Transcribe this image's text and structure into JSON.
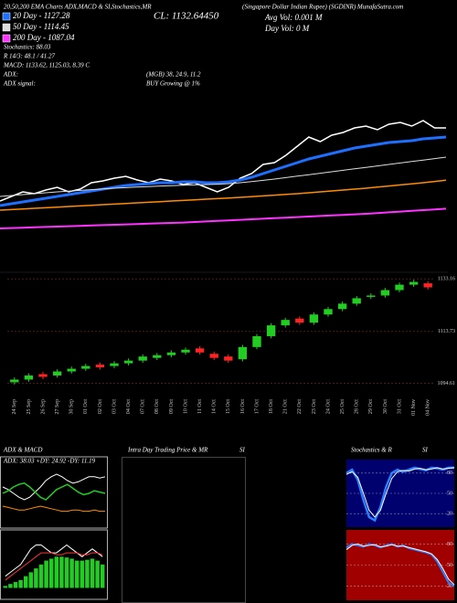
{
  "header": {
    "left": "20,50,200 EMA Charts ADX,MACD & SI,Stochastics,MR",
    "right": "(Singapore Dollar Indian Rupee) (SGDINR) MunafaSutra.com",
    "close": "CL: 1132.64450",
    "avg_vol": "Avg Vol: 0.001  M",
    "day_vol": "Day Vol: 0  M",
    "stoch": "Stochastics: 88.03",
    "r": "R 14/3: 48.1 / 41.27",
    "macd": "MACD: 1133.62, 1125.03, 8.39 C",
    "adx": "ADX:",
    "adx_signal": "ADX  signal:",
    "mgb": "(MGB) 38, 24.9, 11.2",
    "buy": "BUY Growing @ 1%"
  },
  "panels": {
    "adx_title": "ADX  & MACD",
    "adx_values": "ADX: 38.03  +DY: 24.92  -DY: 11.19",
    "intraday_title": "Intra Day Trading Price  & MR",
    "intraday_si": "SI",
    "stoch_title": "Stochastics & R",
    "stoch_si": "SI"
  },
  "chart_data": [
    {
      "type": "line",
      "legend": "top-left",
      "ylim": [
        1077,
        1207
      ],
      "series": [
        {
          "color": "#ffffff",
          "line_width": 1.5,
          "values": [
            1097,
            1099.5,
            1102,
            1101,
            1103,
            1104.5,
            1102,
            1103.5,
            1107,
            1108,
            1109.5,
            1110.5,
            1108.5,
            1107,
            1109,
            1108,
            1106,
            1107,
            1104.5,
            1102,
            1104.5,
            1109.5,
            1112,
            1117,
            1118,
            1122,
            1127,
            1132,
            1129.5,
            1133,
            1134.5,
            1137,
            1138,
            1136,
            1139,
            1140,
            1138,
            1141,
            1137,
            1137
          ]
        },
        {
          "name": "20 Day - 1127.28",
          "color": "#1f6fff",
          "line_width": 3,
          "values": [
            1094.5,
            1095.5,
            1096.5,
            1097.5,
            1098.5,
            1099.5,
            1100.5,
            1101.5,
            1102.5,
            1103.5,
            1104.5,
            1105.5,
            1106,
            1106.5,
            1107,
            1107,
            1107.5,
            1107.5,
            1107,
            1107,
            1107.5,
            1108.5,
            1110,
            1112,
            1114,
            1116,
            1118,
            1120,
            1121.5,
            1123,
            1124.5,
            1126,
            1127,
            1128,
            1129,
            1129.5,
            1130,
            1131,
            1131.5,
            1132
          ]
        },
        {
          "name": "50 Day - 1114.45",
          "color": "#dddddd",
          "line_width": 1,
          "values": [
            1099.5,
            1100,
            1100.5,
            1101,
            1101.5,
            1102,
            1102.4,
            1102.8,
            1103.2,
            1103.6,
            1104,
            1104.3,
            1104.6,
            1104.9,
            1105.2,
            1105.4,
            1105.6,
            1105.8,
            1106,
            1106.2,
            1106.5,
            1107,
            1107.6,
            1108.3,
            1109,
            1109.8,
            1110.6,
            1111.4,
            1112.2,
            1113,
            1113.8,
            1114.6,
            1115.4,
            1116.2,
            1117,
            1117.8,
            1118.6,
            1119.4,
            1120.2,
            1121
          ]
        },
        {
          "color": "#ff8c00",
          "line_width": 1.5,
          "values": [
            1092,
            1092.3,
            1092.6,
            1093,
            1093.3,
            1093.6,
            1094,
            1094.3,
            1094.6,
            1095,
            1095.3,
            1095.6,
            1096,
            1096.3,
            1096.6,
            1097,
            1097.3,
            1097.6,
            1098,
            1098.3,
            1098.6,
            1099,
            1099.4,
            1099.8,
            1100.2,
            1100.6,
            1101,
            1101.5,
            1102,
            1102.5,
            1103,
            1103.5,
            1104,
            1104.6,
            1105.2,
            1105.8,
            1106.4,
            1107,
            1107.7,
            1108.4
          ]
        },
        {
          "name": "200 Day - 1087.04",
          "color": "#ff33ff",
          "line_width": 2,
          "values": [
            1082,
            1082.2,
            1082.4,
            1082.6,
            1082.8,
            1083,
            1083.2,
            1083.4,
            1083.6,
            1083.8,
            1084,
            1084.2,
            1084.4,
            1084.6,
            1084.8,
            1085,
            1085.2,
            1085.5,
            1085.8,
            1086.1,
            1086.4,
            1086.7,
            1087,
            1087.3,
            1087.6,
            1087.9,
            1088.2,
            1088.5,
            1088.8,
            1089.1,
            1089.4,
            1089.7,
            1090,
            1090.4,
            1090.8,
            1091.2,
            1091.6,
            1092,
            1092.4,
            1092.8
          ]
        }
      ]
    },
    {
      "type": "candlestick",
      "ylim": [
        1091.1,
        1134.9
      ],
      "yticks": [
        1133.16,
        1113.73,
        1094.61
      ],
      "grid": true,
      "up_color": "#22cc22",
      "down_color": "#ff2222",
      "categories": [
        "24 Sep",
        "25 Sep",
        "26 Sep",
        "27 Sep",
        "30 Sep",
        "01 Oct",
        "02 Oct",
        "03 Oct",
        "04 Oct",
        "07 Oct",
        "08 Oct",
        "09 Oct",
        "10 Oct",
        "11 Oct",
        "14 Oct",
        "15 Oct",
        "16 Oct",
        "17 Oct",
        "18 Oct",
        "21 Oct",
        "22 Oct",
        "23 Oct",
        "24 Oct",
        "25 Oct",
        "28 Oct",
        "29 Oct",
        "30 Oct",
        "31 Oct",
        "01 Nov",
        "04 Nov"
      ],
      "open": [
        1095,
        1096,
        1098,
        1097.5,
        1099,
        1100,
        1101.5,
        1101,
        1102,
        1103,
        1104,
        1105,
        1106,
        1107.5,
        1105.5,
        1104.5,
        1103.5,
        1108,
        1112,
        1116,
        1118.5,
        1117,
        1120,
        1122,
        1124,
        1126.5,
        1127,
        1129,
        1131,
        1131.5
      ],
      "high": [
        1096.8,
        1098.3,
        1098.8,
        1099.8,
        1100.8,
        1101.8,
        1102.3,
        1102.8,
        1103.8,
        1105.3,
        1105.8,
        1106.8,
        1107.8,
        1108.3,
        1106.3,
        1105.3,
        1108.8,
        1112.8,
        1116.8,
        1118.8,
        1119.3,
        1120.8,
        1122.8,
        1124.8,
        1126.8,
        1127.8,
        1129.8,
        1131.8,
        1132.8,
        1132.3
      ],
      "low": [
        1094.2,
        1095.2,
        1096.2,
        1096.7,
        1098.2,
        1099.2,
        1099.7,
        1100.2,
        1101.2,
        1102.2,
        1103.2,
        1104.2,
        1105.2,
        1105.2,
        1103.2,
        1102.2,
        1102.7,
        1107.2,
        1111.2,
        1115.2,
        1116.2,
        1116.2,
        1119.2,
        1121.2,
        1123.2,
        1125.7,
        1126.2,
        1128.2,
        1130.2,
        1129.2
      ],
      "close": [
        1096,
        1097.5,
        1097,
        1099,
        1100,
        1101,
        1100.5,
        1102,
        1103,
        1104.5,
        1105,
        1106,
        1107,
        1106,
        1104,
        1103,
        1108,
        1112,
        1116,
        1118,
        1117,
        1120,
        1122,
        1124,
        1126,
        1127,
        1129,
        1131,
        1132,
        1130
      ]
    },
    {
      "type": "line",
      "ylim": [
        0,
        45
      ],
      "series": [
        {
          "color": "#ffffff",
          "line_width": 1,
          "values": [
            30,
            28,
            25,
            22,
            20,
            22,
            26,
            30,
            35,
            38,
            40,
            38,
            35,
            33,
            34,
            36,
            38,
            38,
            37,
            38
          ]
        },
        {
          "color": "#22cc22",
          "line_width": 1.5,
          "values": [
            25,
            27,
            30,
            32,
            33,
            30,
            26,
            22,
            20,
            24,
            28,
            30,
            32,
            29,
            26,
            24,
            25,
            27,
            26,
            25
          ]
        },
        {
          "color": "#ff8c00",
          "line_width": 1,
          "values": [
            15,
            14,
            13,
            12,
            12,
            13,
            14,
            15,
            14,
            13,
            12,
            11,
            11,
            12,
            12,
            11,
            11,
            12,
            11,
            11
          ]
        }
      ]
    },
    {
      "type": "combo",
      "ylim": [
        -2,
        13
      ],
      "series": [
        {
          "type": "bar",
          "color": "#22cc22",
          "values": [
            0.5,
            1,
            1.5,
            2,
            3,
            4,
            5,
            6,
            7,
            7.5,
            8,
            8,
            7.8,
            7.5,
            7,
            7,
            7.2,
            7.5,
            7,
            6
          ]
        },
        {
          "type": "line",
          "color": "#ffffff",
          "line_width": 1,
          "values": [
            3,
            4,
            5,
            6,
            8,
            10,
            11,
            11,
            10,
            9,
            9,
            10,
            11,
            10,
            9,
            8,
            9,
            10,
            9,
            8
          ]
        },
        {
          "type": "line",
          "color": "#ff3333",
          "line_width": 1,
          "values": [
            2,
            3,
            4,
            5,
            6,
            7,
            8,
            9,
            9,
            9,
            8.5,
            8.5,
            9,
            9,
            9,
            8.5,
            8.5,
            9,
            9,
            8.5
          ]
        }
      ]
    },
    {
      "type": "line",
      "background": "#00006e",
      "ylim": [
        0,
        100
      ],
      "yticks": [
        80,
        50,
        20
      ],
      "grid": true,
      "series": [
        {
          "color": "#2a7fff",
          "line_width": 2.5,
          "values": [
            80,
            85,
            70,
            40,
            15,
            10,
            30,
            60,
            80,
            85,
            82,
            85,
            88,
            86,
            84,
            88,
            87,
            85,
            88,
            88
          ]
        },
        {
          "color": "#ffffff",
          "line_width": 1,
          "values": [
            78,
            82,
            74,
            50,
            25,
            15,
            25,
            50,
            72,
            82,
            84,
            83,
            86,
            87,
            85,
            86,
            88,
            86,
            87,
            88
          ]
        }
      ]
    },
    {
      "type": "line",
      "background": "#a00000",
      "ylim": [
        0,
        100
      ],
      "yticks": [
        80,
        50,
        20
      ],
      "grid": true,
      "series": [
        {
          "color": "#2a7fff",
          "line_width": 2,
          "values": [
            75,
            80,
            78,
            76,
            80,
            78,
            75,
            78,
            80,
            76,
            78,
            74,
            72,
            70,
            68,
            65,
            55,
            40,
            25,
            20
          ]
        },
        {
          "color": "#ffffff",
          "line_width": 1,
          "values": [
            72,
            78,
            80,
            77,
            78,
            79,
            76,
            77,
            79,
            77,
            77,
            75,
            73,
            71,
            69,
            66,
            58,
            45,
            30,
            22
          ]
        }
      ]
    }
  ]
}
